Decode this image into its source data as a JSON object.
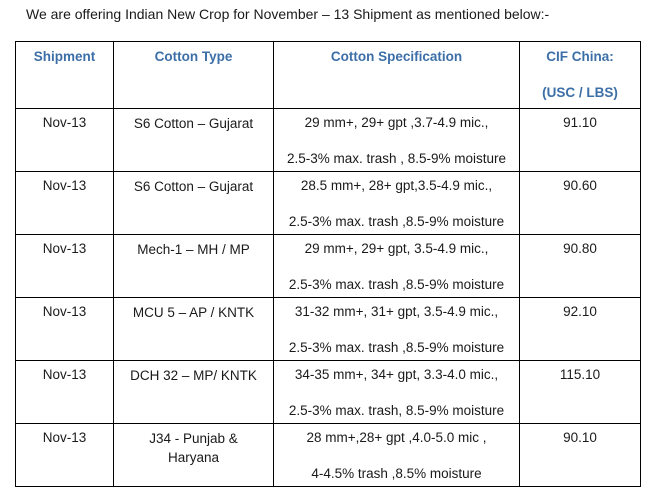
{
  "intro": "We are offering Indian New Crop for November – 13 Shipment as mentioned below:-",
  "headers": {
    "shipment": "Shipment",
    "cotton_type": "Cotton Type",
    "cotton_spec": "Cotton Specification",
    "cif_line1": "CIF China:",
    "cif_line2": "(USC / LBS)"
  },
  "rows": [
    {
      "shipment": "Nov-13",
      "type": "S6 Cotton – Gujarat",
      "spec1": "29 mm+, 29+ gpt ,3.7-4.9 mic.,",
      "spec2": "2.5-3% max. trash , 8.5-9% moisture",
      "price": "91.10"
    },
    {
      "shipment": "Nov-13",
      "type": "S6 Cotton – Gujarat",
      "spec1": "28.5 mm+, 28+ gpt,3.5-4.9 mic.,",
      "spec2": "2.5-3% max. trash ,8.5-9% moisture",
      "price": "90.60"
    },
    {
      "shipment": "Nov-13",
      "type": "Mech-1 – MH / MP",
      "spec1": "29 mm+, 29+ gpt, 3.5-4.9 mic.,",
      "spec2": "2.5-3% max. trash ,8.5-9% moisture",
      "price": "90.80"
    },
    {
      "shipment": "Nov-13",
      "type": "MCU 5 – AP / KNTK",
      "spec1": "31-32 mm+, 31+ gpt, 3.5-4.9 mic.,",
      "spec2": "2.5-3% max. trash ,8.5-9% moisture",
      "price": "92.10"
    },
    {
      "shipment": "Nov-13",
      "type": "DCH 32 – MP/ KNTK",
      "spec1": "34-35 mm+, 34+ gpt, 3.3-4.0 mic.,",
      "spec2": "2.5-3% max. trash, 8.5-9% moisture",
      "price": "115.10"
    },
    {
      "shipment": "Nov-13",
      "type": "J34 - Punjab & Haryana",
      "spec1": "28 mm+,28+ gpt ,4.0-5.0 mic ,",
      "spec2": "4-4.5% trash ,8.5% moisture",
      "price": "90.10"
    }
  ]
}
